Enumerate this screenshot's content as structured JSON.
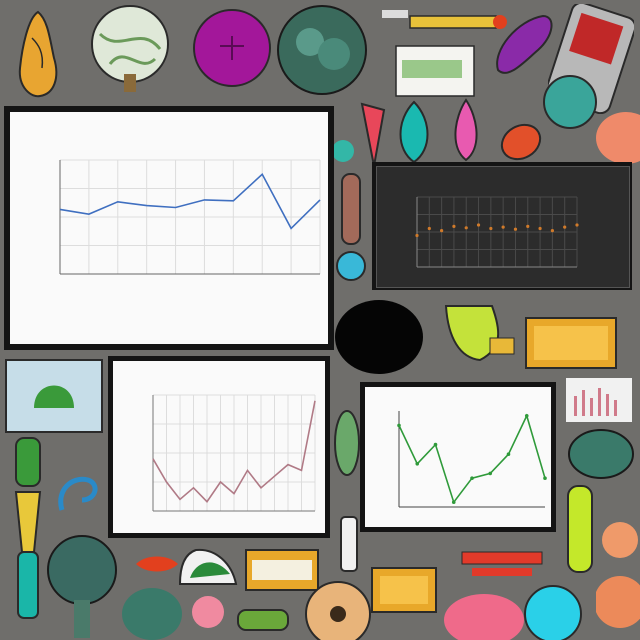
{
  "colors": {
    "background": "#6f6e6b",
    "panel_border": "#141414",
    "blue_line": "#3f6fc0",
    "green_line": "#2f9a3a",
    "mauve_line": "#b07a86",
    "orange_marks": "#d07a2a"
  },
  "charts": [
    {
      "id": "main-line-chart",
      "type": "line",
      "title": "",
      "subtitle": "",
      "xlabel": "",
      "ylabel": "",
      "grid": true,
      "series": [
        {
          "values": [
            0.68,
            0.63,
            0.76,
            0.72,
            0.7,
            0.78,
            0.77,
            1.05,
            0.48,
            0.78
          ]
        }
      ],
      "ylim": [
        0,
        1.2
      ]
    },
    {
      "id": "dark-chart",
      "type": "scatter",
      "title": "",
      "grid": true,
      "series": [
        {
          "values": [
            0.45,
            0.55,
            0.52,
            0.58,
            0.56,
            0.6,
            0.55,
            0.57,
            0.54,
            0.58,
            0.55,
            0.52,
            0.57,
            0.6
          ]
        }
      ],
      "ylim": [
        0,
        1
      ]
    },
    {
      "id": "middle-line-chart",
      "type": "line",
      "title": "",
      "grid": true,
      "series": [
        {
          "values": [
            0.45,
            0.25,
            0.1,
            0.2,
            0.08,
            0.25,
            0.15,
            0.35,
            0.2,
            0.3,
            0.4,
            0.35,
            0.95
          ]
        }
      ],
      "ylim": [
        0,
        1
      ]
    },
    {
      "id": "green-line-chart",
      "type": "line",
      "title": "",
      "grid": false,
      "series": [
        {
          "values": [
            0.85,
            0.45,
            0.65,
            0.05,
            0.3,
            0.35,
            0.55,
            0.95,
            0.3
          ]
        }
      ],
      "ylim": [
        0,
        1
      ]
    }
  ],
  "decor_icons": [
    "pear-icon",
    "cauliflower-icon",
    "onion-icon",
    "broccoli-icon",
    "pot-icon",
    "pepper-icon",
    "eggplant-icon",
    "phone-icon",
    "spoon-icon",
    "cutting-board-icon",
    "leaf-icon",
    "carrot-icon",
    "zucchini-icon",
    "tomato-icon",
    "melon-icon"
  ]
}
